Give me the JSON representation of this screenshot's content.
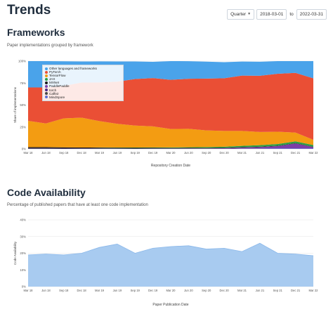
{
  "page": {
    "title": "Trends"
  },
  "controls": {
    "granularity": "Quarter",
    "from_date": "2018-03-01",
    "to_label": "to",
    "to_date": "2022-03-31"
  },
  "frameworks_section": {
    "title": "Frameworks",
    "subtitle": "Paper implementations grouped by framework"
  },
  "code_section": {
    "title": "Code Availability",
    "subtitle": "Percentage of published papers that have at least one code implementation"
  },
  "colors": {
    "other": "#4aa3ea",
    "pytorch": "#ea4f35",
    "tensorflow": "#f39c12",
    "jax": "#2e9e47",
    "mxnet": "#1a1a1a",
    "paddlepaddle": "#7b3fa8",
    "torch": "#4a2a8a",
    "caffe2": "#444444",
    "mindspore": "#5a6fd6",
    "code_area": "#a8cbf0",
    "code_line": "#8bb8ea"
  },
  "chart_data": [
    {
      "type": "area",
      "stacked": true,
      "ylabel": "Share of implementations",
      "xlabel": "Repository Creation Date",
      "ylim": [
        0,
        100
      ],
      "yticks": [
        "0%",
        "25%",
        "50%",
        "75%",
        "100%"
      ],
      "xticks": [
        "Mar 18",
        "Jun 18",
        "Sep 18",
        "Dec 18",
        "Mar 19",
        "Jun 19",
        "Sep 19",
        "Dec 19",
        "Mar 20",
        "Jun 20",
        "Sep 20",
        "Dec 20",
        "Mar 21",
        "Jun 21",
        "Sep 21",
        "Dec 21",
        "Mar 22"
      ],
      "legend_position": "top-left",
      "series": [
        {
          "name": "MindSpore",
          "key": "mindspore",
          "values": [
            0,
            0,
            0,
            0,
            0,
            0,
            0,
            0,
            0,
            0,
            0,
            0,
            0.2,
            0.3,
            0.5,
            0.5,
            0.4
          ]
        },
        {
          "name": "Caffe2",
          "key": "caffe2",
          "values": [
            0.5,
            0.5,
            0.4,
            0.3,
            0.3,
            0.2,
            0.2,
            0.1,
            0.1,
            0.1,
            0.1,
            0.1,
            0.1,
            0.1,
            0,
            0,
            0
          ]
        },
        {
          "name": "torch",
          "key": "torch",
          "values": [
            0.5,
            0.5,
            0.4,
            0.4,
            0.3,
            0.3,
            0.2,
            0.2,
            0.2,
            0.2,
            0.2,
            0.2,
            0.2,
            0.2,
            0.2,
            0.2,
            0.2
          ]
        },
        {
          "name": "PaddlePaddle",
          "key": "paddlepaddle",
          "values": [
            0,
            0,
            0,
            0,
            0,
            0,
            0,
            0.2,
            0.2,
            0.3,
            0.3,
            0.5,
            1.0,
            1.5,
            2.5,
            5.5,
            1.5
          ]
        },
        {
          "name": "MXNet",
          "key": "mxnet",
          "values": [
            1.0,
            1.0,
            1.0,
            0.9,
            0.9,
            0.8,
            0.8,
            0.7,
            0.6,
            0.6,
            0.5,
            0.5,
            0.5,
            0.4,
            0.4,
            0.4,
            0.3
          ]
        },
        {
          "name": "JAX",
          "key": "jax",
          "values": [
            0,
            0,
            0,
            0,
            0.2,
            0.3,
            0.4,
            0.5,
            0.6,
            0.7,
            1.0,
            1.2,
            1.5,
            1.8,
            2.0,
            2.0,
            2.0
          ]
        },
        {
          "name": "TensorFlow",
          "key": "tensorflow",
          "values": [
            30,
            27,
            33,
            34,
            30,
            27,
            25,
            24,
            21,
            21,
            19,
            18,
            17,
            15,
            14,
            10,
            6
          ]
        },
        {
          "name": "PyTorch",
          "key": "pytorch",
          "values": [
            38,
            41,
            37,
            40,
            44,
            48,
            53,
            55,
            56,
            57,
            59,
            60,
            63,
            64,
            66,
            68,
            70
          ]
        },
        {
          "name": "Other languages and frameworks",
          "key": "other",
          "values": [
            30,
            30,
            28,
            24,
            24,
            23,
            20,
            18.5,
            21.3,
            20,
            19.3,
            18.3,
            16,
            16,
            14.4,
            13.4,
            19.6
          ]
        }
      ],
      "legend_order": [
        "Other languages and frameworks",
        "PyTorch",
        "TensorFlow",
        "JAX",
        "MXNet",
        "PaddlePaddle",
        "torch",
        "Caffe2",
        "MindSpore"
      ]
    },
    {
      "type": "area",
      "ylabel": "Code Availability",
      "xlabel": "Paper Publication Date",
      "ylim": [
        0,
        40
      ],
      "yticks": [
        "0%",
        "10%",
        "20%",
        "30%",
        "40%"
      ],
      "xticks": [
        "Mar 18",
        "Jun 18",
        "Sep 18",
        "Dec 18",
        "Mar 19",
        "Jun 19",
        "Sep 19",
        "Dec 19",
        "Mar 20",
        "Jun 20",
        "Sep 20",
        "Dec 20",
        "Mar 21",
        "Jun 21",
        "Sep 21",
        "Dec 21",
        "Mar 22"
      ],
      "series": [
        {
          "name": "",
          "key": "code",
          "values": [
            19,
            19.5,
            19,
            20,
            23.5,
            25.5,
            20,
            23,
            24,
            24.5,
            22.5,
            23,
            21,
            26,
            20,
            19.5,
            18.5
          ]
        }
      ]
    }
  ]
}
